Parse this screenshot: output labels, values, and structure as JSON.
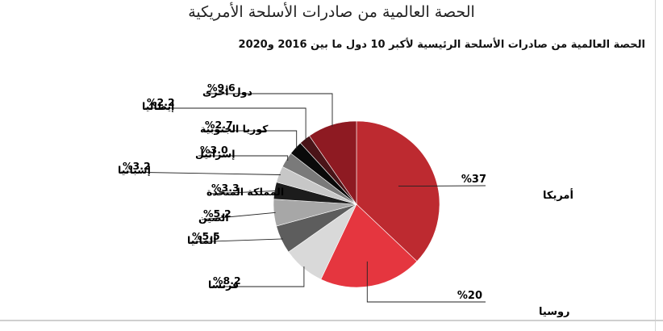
{
  "header": {
    "title": "الحصة العالمية من صادرات الأسلحة الأمريكية",
    "subtitle": "الحصة العالمية من صادرات الأسلحة الرئيسية لأكبر 10 دول ما بين 2016 و2020"
  },
  "chart_data": {
    "type": "pie",
    "title": "الحصة العالمية من صادرات الأسلحة الأمريكية",
    "subtitle": "الحصة العالمية من صادرات الأسلحة الرئيسية لأكبر 10 دول ما بين 2016 و2020",
    "legend": "none",
    "slices": [
      {
        "label": "أمريكا",
        "value": 37,
        "value_text": "%37",
        "color": "#bd2a30"
      },
      {
        "label": "روسيا",
        "value": 20,
        "value_text": "%20",
        "color": "#e5363f"
      },
      {
        "label": "فرنسا",
        "value": 8.2,
        "value_text": "%8.2",
        "color": "#d9d9d9"
      },
      {
        "label": "ألمانيا",
        "value": 5.5,
        "value_text": "%5.5",
        "color": "#5d5d5d"
      },
      {
        "label": "الصين",
        "value": 5.2,
        "value_text": "%5.2",
        "color": "#a7a7a7"
      },
      {
        "label": "المملكة المتحدة",
        "value": 3.3,
        "value_text": "%3.3",
        "color": "#1c1c1c"
      },
      {
        "label": "إسبانيا",
        "value": 3.2,
        "value_text": "%3.2",
        "color": "#c7c7c7"
      },
      {
        "label": "إسرائيل",
        "value": 3.0,
        "value_text": "%3.0",
        "color": "#7a7a7a"
      },
      {
        "label": "كوريا الجنوبية",
        "value": 2.7,
        "value_text": "%2.7",
        "color": "#0a0a0a"
      },
      {
        "label": "إيطاليا",
        "value": 2.2,
        "value_text": "%2.2",
        "color": "#4a1418"
      },
      {
        "label": "دول أخرى",
        "value": 9.6,
        "value_text": "%9.6",
        "color": "#8e1a22"
      }
    ]
  }
}
